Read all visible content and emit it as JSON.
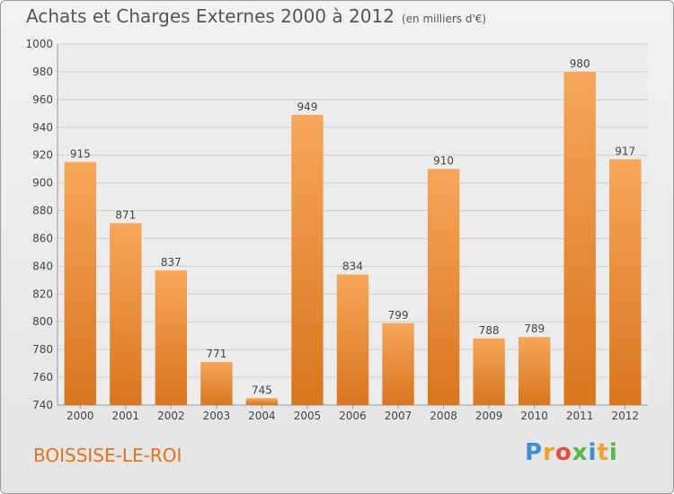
{
  "header": {
    "title": "Achats et Charges Externes 2000 à 2012",
    "subtitle": "(en milliers d'€)"
  },
  "footer": {
    "commune": "BOISSISE-LE-ROI",
    "logo_letters": [
      "P",
      "r",
      "o",
      "x",
      "i",
      "t",
      "i"
    ],
    "logo_colors": [
      "#3a8fd6",
      "#f0a030",
      "#e84c3c",
      "#55b848",
      "#3a8fd6",
      "#f0a030",
      "#55b848"
    ]
  },
  "colors": {
    "bar_light": "#f6a65a",
    "bar_dark": "#d9761e",
    "grid": "#cfcfcf",
    "axis_text": "#444444"
  },
  "chart_data": {
    "type": "bar",
    "title": "Achats et Charges Externes 2000 à 2012",
    "subtitle": "(en milliers d'€)",
    "categories": [
      "2000",
      "2001",
      "2002",
      "2003",
      "2004",
      "2005",
      "2006",
      "2007",
      "2008",
      "2009",
      "2010",
      "2011",
      "2012"
    ],
    "values": [
      915,
      871,
      837,
      771,
      745,
      949,
      834,
      799,
      910,
      788,
      789,
      980,
      917
    ],
    "ylim": [
      740,
      1000
    ],
    "yticks": [
      740,
      760,
      780,
      800,
      820,
      840,
      860,
      880,
      900,
      920,
      940,
      960,
      980,
      1000
    ],
    "grid": true,
    "legend": "none"
  }
}
